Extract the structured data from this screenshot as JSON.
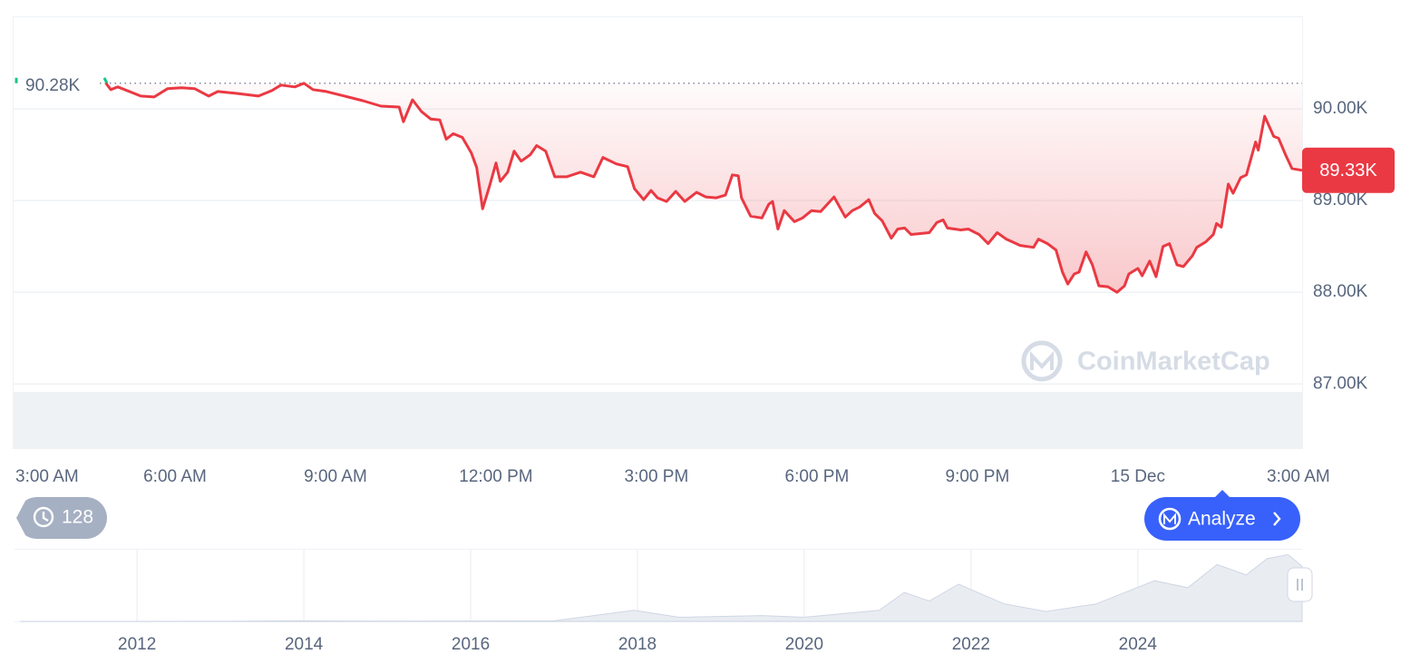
{
  "chart_data": [
    {
      "type": "line",
      "color": "#ea3943",
      "grid": true,
      "x": [
        1.71,
        1.8,
        1.93,
        2.19,
        2.36,
        2.61,
        2.86,
        3.12,
        3.37,
        3.63,
        3.8,
        4.14,
        4.56,
        4.81,
        4.98,
        5.24,
        5.41,
        5.58,
        5.83,
        6.17,
        6.51,
        6.85,
        7.19,
        7.27,
        7.44,
        7.61,
        7.78,
        7.95,
        8.07,
        8.2,
        8.37,
        8.54,
        8.64,
        8.75,
        8.88,
        9.0,
        9.08,
        9.22,
        9.34,
        9.47,
        9.64,
        9.76,
        9.93,
        10.1,
        10.32,
        10.58,
        10.83,
        11.0,
        11.25,
        11.46,
        11.59,
        11.76,
        11.9,
        12.02,
        12.19,
        12.36,
        12.53,
        12.75,
        12.92,
        13.12,
        13.29,
        13.42,
        13.53,
        13.59,
        13.76,
        13.97,
        14.1,
        14.17,
        14.27,
        14.39,
        14.58,
        14.73,
        14.9,
        15.07,
        15.32,
        15.53,
        15.66,
        15.8,
        15.97,
        16.08,
        16.22,
        16.39,
        16.51,
        16.64,
        16.76,
        16.93,
        17.1,
        17.24,
        17.36,
        17.44,
        17.69,
        17.83,
        18.03,
        18.2,
        18.37,
        18.54,
        18.8,
        19.05,
        19.14,
        19.31,
        19.47,
        19.59,
        19.69,
        19.81,
        19.9,
        20.03,
        20.15,
        20.27,
        20.44,
        20.61,
        20.75,
        20.83,
        21.0,
        21.08,
        21.22,
        21.34,
        21.47,
        21.59,
        21.73,
        21.85,
        22.02,
        22.1,
        22.27,
        22.41,
        22.47,
        22.56,
        22.69,
        22.78,
        22.92,
        23.03,
        23.2,
        23.25,
        23.37,
        23.54,
        23.63,
        23.76,
        23.88,
        24.07
      ],
      "values": [
        90280,
        90210,
        90240,
        90180,
        90140,
        90130,
        90220,
        90230,
        90220,
        90140,
        90190,
        90170,
        90140,
        90200,
        90260,
        90240,
        90280,
        90210,
        90190,
        90140,
        90090,
        90030,
        90020,
        89860,
        90100,
        89970,
        89890,
        89880,
        89670,
        89730,
        89690,
        89520,
        89360,
        88910,
        89160,
        89410,
        89210,
        89310,
        89540,
        89430,
        89500,
        89600,
        89540,
        89260,
        89260,
        89310,
        89260,
        89470,
        89400,
        89370,
        89130,
        89010,
        89110,
        89030,
        88990,
        89100,
        88990,
        89090,
        89040,
        89030,
        89060,
        89280,
        89270,
        89030,
        88830,
        88810,
        88960,
        88990,
        88690,
        88890,
        88770,
        88810,
        88890,
        88880,
        89040,
        88820,
        88890,
        88930,
        89010,
        88860,
        88780,
        88590,
        88690,
        88700,
        88630,
        88640,
        88650,
        88760,
        88790,
        88700,
        88680,
        88690,
        88630,
        88530,
        88650,
        88580,
        88510,
        88490,
        88580,
        88530,
        88460,
        88220,
        88090,
        88200,
        88220,
        88440,
        88300,
        88070,
        88060,
        88000,
        88070,
        88200,
        88260,
        88180,
        88340,
        88170,
        88500,
        88530,
        88300,
        88280,
        88400,
        88490,
        88550,
        88630,
        88750,
        88710,
        89180,
        89080,
        89250,
        89280,
        89640,
        89550,
        89920,
        89700,
        89680,
        89500,
        89350,
        89330
      ],
      "xlim": [
        0,
        24.07
      ],
      "xticks": [
        {
          "value": 0,
          "label": "3:00 AM"
        },
        {
          "value": 3,
          "label": "6:00 AM"
        },
        {
          "value": 6,
          "label": "9:00 AM"
        },
        {
          "value": 9,
          "label": "12:00 PM"
        },
        {
          "value": 12,
          "label": "3:00 PM"
        },
        {
          "value": 15,
          "label": "6:00 PM"
        },
        {
          "value": 18,
          "label": "9:00 PM"
        },
        {
          "value": 21,
          "label": "15 Dec"
        },
        {
          "value": 24,
          "label": "3:00 AM"
        }
      ],
      "ylim": [
        86290,
        91010
      ],
      "yticks": [
        {
          "value": 87000,
          "label": "87.00K"
        },
        {
          "value": 88000,
          "label": "88.00K"
        },
        {
          "value": 89000,
          "label": "89.00K"
        },
        {
          "value": 90000,
          "label": "90.00K"
        }
      ],
      "start_price": {
        "value": 90280,
        "label": "90.28K"
      },
      "current_price": {
        "value": 89330,
        "label": "89.33K"
      }
    },
    {
      "type": "area",
      "color": "#cfd6e4",
      "x": [
        2010.6,
        2013.0,
        2013.9,
        2015.0,
        2017.0,
        2017.96,
        2018.5,
        2019.5,
        2020.0,
        2020.9,
        2021.2,
        2021.5,
        2021.85,
        2022.4,
        2022.9,
        2023.5,
        2024.2,
        2024.6,
        2024.95,
        2025.3,
        2025.55,
        2025.8,
        2025.97
      ],
      "values": [
        0,
        200,
        1000,
        300,
        1000,
        19000,
        7000,
        10000,
        7000,
        19000,
        50000,
        35000,
        64000,
        30000,
        17000,
        30000,
        70000,
        58000,
        98000,
        80000,
        108000,
        115000,
        95000
      ],
      "xlim": [
        2010.53,
        2025.97
      ],
      "xticks": [
        2012,
        2014,
        2016,
        2018,
        2020,
        2022,
        2024
      ],
      "ylim": [
        0,
        125000
      ]
    }
  ],
  "ui": {
    "watermark": "CoinMarketCap",
    "history_count": 128,
    "analyze_button": "Analyze"
  }
}
